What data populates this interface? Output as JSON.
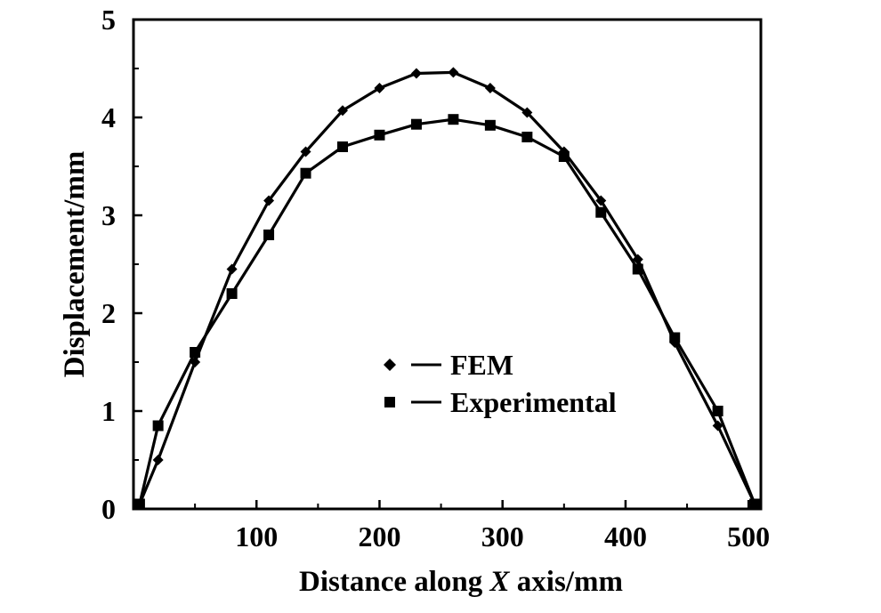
{
  "chart_data": {
    "type": "line",
    "title": "",
    "xlabel_prefix": "Distance along ",
    "xlabel_var": "X",
    "xlabel_suffix": " axis/mm",
    "ylabel": "Displacement/mm",
    "xlim": [
      0,
      510
    ],
    "ylim": [
      0,
      5
    ],
    "xticks": [
      100,
      200,
      300,
      400,
      500
    ],
    "xtick_labels": [
      "100",
      "200",
      "300",
      "400",
      "500"
    ],
    "yticks": [
      0,
      1,
      2,
      3,
      4,
      5
    ],
    "ytick_labels": [
      "0",
      "1",
      "2",
      "3",
      "4",
      "5"
    ],
    "grid": false,
    "legend_position": "center",
    "series": [
      {
        "name": "FEM",
        "marker": "diamond",
        "color": "#000000",
        "x": [
          5,
          20,
          50,
          80,
          110,
          140,
          170,
          200,
          230,
          260,
          290,
          320,
          350,
          380,
          410,
          440,
          475,
          505
        ],
        "y": [
          0.05,
          0.5,
          1.5,
          2.45,
          3.15,
          3.65,
          4.07,
          4.3,
          4.45,
          4.46,
          4.3,
          4.05,
          3.65,
          3.15,
          2.55,
          1.7,
          0.85,
          0.05
        ]
      },
      {
        "name": "Experimental",
        "marker": "square",
        "color": "#000000",
        "x": [
          5,
          20,
          50,
          80,
          110,
          140,
          170,
          200,
          230,
          260,
          290,
          320,
          350,
          380,
          410,
          440,
          475,
          505
        ],
        "y": [
          0.05,
          0.85,
          1.6,
          2.2,
          2.8,
          3.43,
          3.7,
          3.82,
          3.93,
          3.98,
          3.92,
          3.8,
          3.6,
          3.03,
          2.45,
          1.75,
          1.0,
          0.05
        ]
      }
    ]
  }
}
